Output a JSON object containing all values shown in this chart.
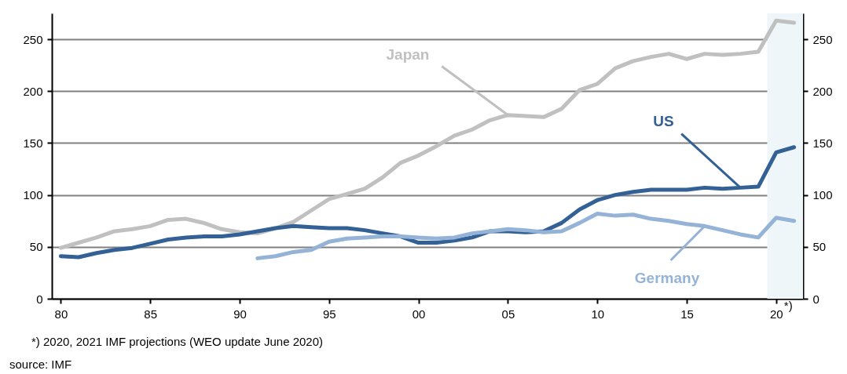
{
  "chart_data": {
    "type": "line",
    "x": [
      1980,
      1981,
      1982,
      1983,
      1984,
      1985,
      1986,
      1987,
      1988,
      1989,
      1990,
      1991,
      1992,
      1993,
      1994,
      1995,
      1996,
      1997,
      1998,
      1999,
      2000,
      2001,
      2002,
      2003,
      2004,
      2005,
      2006,
      2007,
      2008,
      2009,
      2010,
      2011,
      2012,
      2013,
      2014,
      2015,
      2016,
      2017,
      2018,
      2019,
      2020,
      2021
    ],
    "series": [
      {
        "name": "Japan",
        "color": "#c0c0c0",
        "values": [
          49,
          54,
          59,
          65,
          67,
          70,
          76,
          77,
          73,
          67,
          64,
          63,
          68,
          74,
          85,
          96,
          101,
          106,
          117,
          131,
          138,
          147,
          157,
          163,
          172,
          177,
          176,
          175,
          183,
          201,
          207,
          222,
          229,
          233,
          236,
          231,
          236,
          235,
          236,
          238,
          268,
          266
        ]
      },
      {
        "name": "US",
        "color": "#336195",
        "values": [
          41,
          40,
          44,
          47,
          49,
          53,
          57,
          59,
          60,
          60,
          62,
          65,
          68,
          70,
          69,
          68,
          68,
          66,
          63,
          60,
          54,
          54,
          56,
          59,
          65,
          65,
          64,
          65,
          73,
          86,
          95,
          100,
          103,
          105,
          105,
          105,
          107,
          106,
          107,
          108,
          141,
          146
        ]
      },
      {
        "name": "Germany",
        "color": "#95b3d7",
        "x": [
          1991,
          1992,
          1993,
          1994,
          1995,
          1996,
          1997,
          1998,
          1999,
          2000,
          2001,
          2002,
          2003,
          2004,
          2005,
          2006,
          2007,
          2008,
          2009,
          2010,
          2011,
          2012,
          2013,
          2014,
          2015,
          2016,
          2017,
          2018,
          2019,
          2020,
          2021
        ],
        "values": [
          39,
          41,
          45,
          47,
          55,
          58,
          59,
          60,
          60,
          59,
          58,
          59,
          63,
          65,
          67,
          66,
          64,
          65,
          73,
          82,
          80,
          81,
          77,
          75,
          72,
          70,
          66,
          62,
          59,
          78,
          75
        ]
      }
    ],
    "xlim": [
      1979.5,
      2021.5
    ],
    "xticks": [
      {
        "value": 1980,
        "label": "80"
      },
      {
        "value": 1985,
        "label": "85"
      },
      {
        "value": 1990,
        "label": "90"
      },
      {
        "value": 1995,
        "label": "95"
      },
      {
        "value": 2000,
        "label": "00"
      },
      {
        "value": 2005,
        "label": "05"
      },
      {
        "value": 2010,
        "label": "10"
      },
      {
        "value": 2015,
        "label": "15"
      },
      {
        "value": 2020,
        "label": "20"
      }
    ],
    "ylim": [
      0,
      275
    ],
    "yticks": [
      0,
      50,
      100,
      150,
      200,
      250
    ],
    "y2lim": [
      0,
      275
    ],
    "y2ticks": [
      0,
      50,
      100,
      150,
      200,
      250
    ],
    "grid": "y",
    "marker": "none",
    "line_style": "solid",
    "bands": [
      {
        "axis": "x",
        "from": 2019.5,
        "to": 2021.5,
        "color": "#eef6f9"
      }
    ],
    "annotations": [
      "*)",
      "*) 2020, 2021 IMF projections (WEO update June 2020)",
      "source: IMF"
    ]
  }
}
